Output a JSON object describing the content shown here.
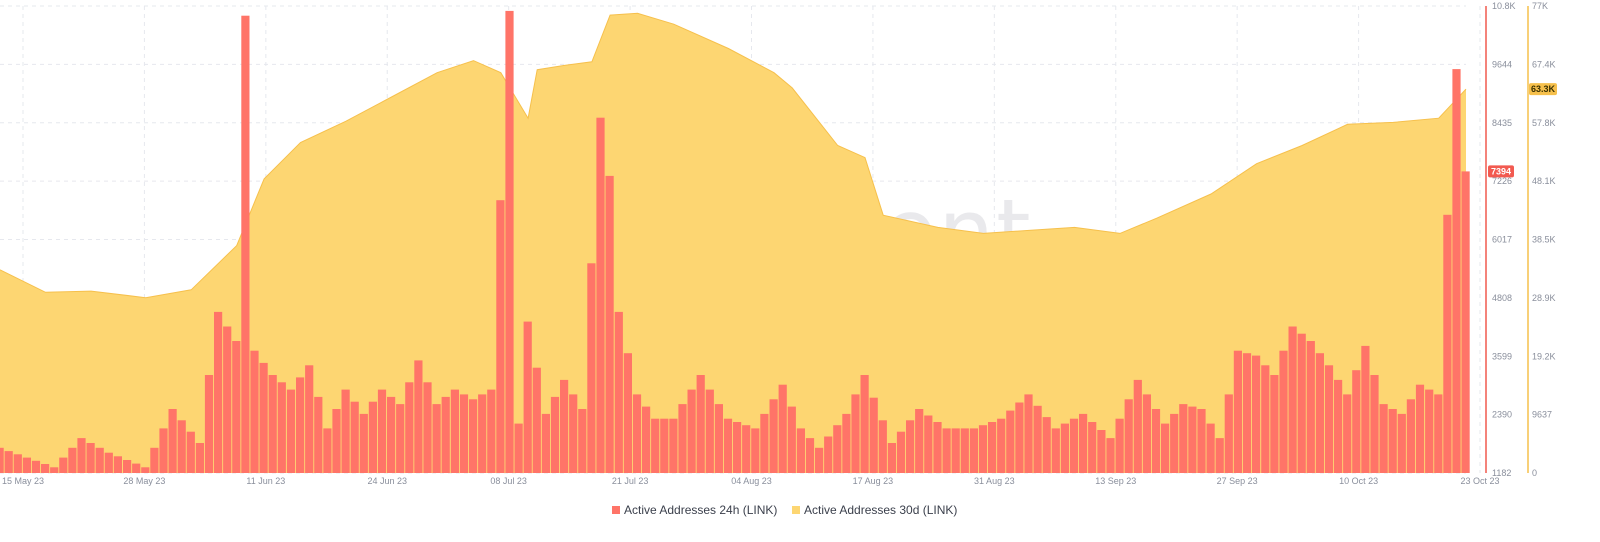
{
  "watermark": "santiment",
  "colors": {
    "series_24h": "#ff7468",
    "series_24h_line": "#f05a4f",
    "series_30d": "#fdd672",
    "series_30d_line": "#f6c04c",
    "grid": "#e6e8ee",
    "tick": "#8a8f9c"
  },
  "chart_data": {
    "type": "area",
    "title": "",
    "xlabel": "",
    "x_range": [
      "2023-05-15",
      "2023-10-23"
    ],
    "x_ticks": [
      "15 May 23",
      "28 May 23",
      "11 Jun 23",
      "24 Jun 23",
      "08 Jul 23",
      "21 Jul 23",
      "04 Aug 23",
      "17 Aug 23",
      "31 Aug 23",
      "13 Sep 23",
      "27 Sep 23",
      "10 Oct 23",
      "23 Oct 23"
    ],
    "y_left": {
      "series": "Active Addresses 24h (LINK)",
      "range": [
        1182,
        10800
      ],
      "ticks": [
        "1182",
        "2390",
        "3599",
        "4808",
        "6017",
        "7226",
        "8435",
        "9644",
        "10.8K"
      ]
    },
    "y_right": {
      "series": "Active Addresses 30d (LINK)",
      "range": [
        0,
        77000
      ],
      "ticks": [
        "0",
        "9637",
        "19.2K",
        "28.9K",
        "38.5K",
        "48.1K",
        "57.8K",
        "67.4K",
        "77K"
      ]
    },
    "legend_position": "bottom-center",
    "grid": true,
    "series": [
      {
        "name": "Active Addresses 30d (LINK)",
        "axis": "right",
        "type": "area",
        "x": [
          "2023-05-15",
          "2023-05-20",
          "2023-05-25",
          "2023-05-31",
          "2023-06-05",
          "2023-06-10",
          "2023-06-13",
          "2023-06-17",
          "2023-06-22",
          "2023-06-27",
          "2023-07-02",
          "2023-07-06",
          "2023-07-09",
          "2023-07-12",
          "2023-07-13",
          "2023-07-16",
          "2023-07-19",
          "2023-07-21",
          "2023-07-24",
          "2023-07-28",
          "2023-08-03",
          "2023-08-08",
          "2023-08-10",
          "2023-08-15",
          "2023-08-18",
          "2023-08-20",
          "2023-08-26",
          "2023-08-31",
          "2023-09-05",
          "2023-09-10",
          "2023-09-15",
          "2023-09-19",
          "2023-09-25",
          "2023-09-30",
          "2023-10-05",
          "2023-10-10",
          "2023-10-15",
          "2023-10-20",
          "2023-10-23"
        ],
        "values": [
          33500,
          29800,
          30000,
          28900,
          30200,
          37500,
          48500,
          54500,
          58000,
          62000,
          66000,
          68000,
          66000,
          58500,
          66500,
          67200,
          67800,
          75500,
          75800,
          74000,
          70000,
          66000,
          63500,
          54000,
          52000,
          42500,
          40500,
          39500,
          40000,
          40500,
          39500,
          42000,
          46000,
          51000,
          54000,
          57500,
          57800,
          58500,
          63300
        ]
      },
      {
        "name": "Active Addresses 24h (LINK)",
        "axis": "left",
        "type": "bar",
        "x": [
          "2023-05-15",
          "2023-05-18",
          "2023-05-21",
          "2023-05-24",
          "2023-05-27",
          "2023-05-31",
          "2023-06-03",
          "2023-06-06",
          "2023-06-07",
          "2023-06-08",
          "2023-06-10",
          "2023-06-11",
          "2023-06-12",
          "2023-06-14",
          "2023-06-16",
          "2023-06-18",
          "2023-06-20",
          "2023-06-22",
          "2023-06-24",
          "2023-06-26",
          "2023-06-28",
          "2023-06-30",
          "2023-07-02",
          "2023-07-04",
          "2023-07-06",
          "2023-07-08",
          "2023-07-10",
          "2023-07-11",
          "2023-07-12",
          "2023-07-14",
          "2023-07-16",
          "2023-07-18",
          "2023-07-20",
          "2023-07-21",
          "2023-07-22",
          "2023-07-24",
          "2023-07-26",
          "2023-07-28",
          "2023-07-31",
          "2023-08-03",
          "2023-08-06",
          "2023-08-09",
          "2023-08-11",
          "2023-08-13",
          "2023-08-16",
          "2023-08-18",
          "2023-08-21",
          "2023-08-24",
          "2023-08-27",
          "2023-08-30",
          "2023-09-02",
          "2023-09-05",
          "2023-09-08",
          "2023-09-11",
          "2023-09-14",
          "2023-09-17",
          "2023-09-20",
          "2023-09-22",
          "2023-09-24",
          "2023-09-26",
          "2023-09-28",
          "2023-09-30",
          "2023-10-02",
          "2023-10-04",
          "2023-10-06",
          "2023-10-08",
          "2023-10-10",
          "2023-10-12",
          "2023-10-14",
          "2023-10-16",
          "2023-10-18",
          "2023-10-20",
          "2023-10-21",
          "2023-10-22",
          "2023-10-23"
        ],
        "values": [
          1700,
          1500,
          1300,
          1900,
          1600,
          1300,
          2500,
          1800,
          3200,
          4500,
          3900,
          10600,
          3700,
          3200,
          2900,
          3400,
          2100,
          2900,
          2400,
          2900,
          2600,
          3500,
          2600,
          2900,
          2700,
          2900,
          10700,
          2200,
          4300,
          2400,
          3100,
          2500,
          8500,
          7300,
          4500,
          2800,
          2300,
          2300,
          3200,
          2300,
          2100,
          3000,
          2100,
          1700,
          2400,
          3200,
          1800,
          2500,
          2100,
          2100,
          2300,
          2800,
          2100,
          2400,
          1900,
          3100,
          2200,
          2600,
          2500,
          1900,
          3700,
          3600,
          3200,
          4200,
          3900,
          3400,
          2800,
          3800,
          2600,
          2400,
          3000,
          2800,
          6500,
          9500,
          7394
        ]
      }
    ],
    "badges": {
      "right": "63.3K",
      "left": "7394"
    }
  },
  "legend": {
    "items": [
      {
        "label": "Active Addresses 24h (LINK)"
      },
      {
        "label": "Active Addresses 30d (LINK)"
      }
    ]
  }
}
